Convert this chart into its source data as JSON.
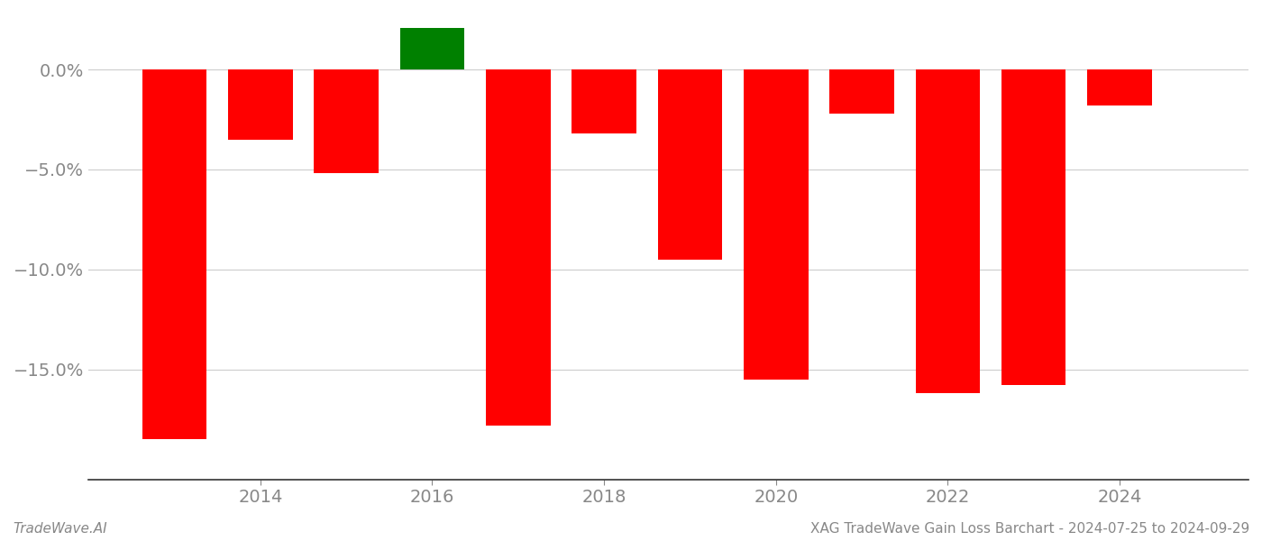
{
  "years": [
    2013,
    2014,
    2015,
    2016,
    2017,
    2018,
    2019,
    2020,
    2021,
    2022,
    2023,
    2024
  ],
  "values": [
    -18.5,
    -3.5,
    -5.2,
    2.1,
    -17.8,
    -3.2,
    -9.5,
    -15.5,
    -2.2,
    -16.2,
    -15.8,
    -1.8
  ],
  "colors": [
    "#ff0000",
    "#ff0000",
    "#ff0000",
    "#008000",
    "#ff0000",
    "#ff0000",
    "#ff0000",
    "#ff0000",
    "#ff0000",
    "#ff0000",
    "#ff0000",
    "#ff0000"
  ],
  "bar_width": 0.75,
  "ylim": [
    -20.5,
    2.8
  ],
  "yticks": [
    0.0,
    -5.0,
    -10.0,
    -15.0
  ],
  "xticks": [
    2014,
    2016,
    2018,
    2020,
    2022,
    2024
  ],
  "xlim": [
    2012.0,
    2025.5
  ],
  "footer_left": "TradeWave.AI",
  "footer_right": "XAG TradeWave Gain Loss Barchart - 2024-07-25 to 2024-09-29",
  "background_color": "#ffffff",
  "grid_color": "#cccccc",
  "tick_color": "#888888",
  "axis_color": "#333333",
  "tick_fontsize": 14,
  "footer_fontsize": 11
}
